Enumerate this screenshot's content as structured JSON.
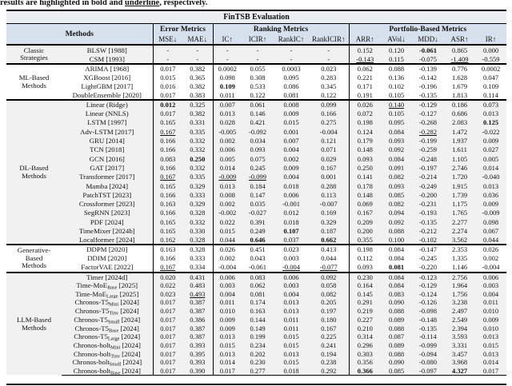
{
  "caption": {
    "prefix": "results are highlighted in ",
    "bold_word": "bold",
    "mid": " and ",
    "underline_word": "underline",
    "suffix": ", respectively."
  },
  "table": {
    "title": "FinTSB Evaluation",
    "header_groups": [
      {
        "label": "Methods",
        "span": 2
      },
      {
        "label": "Error Metrics",
        "span": 2
      },
      {
        "label": "Ranking Metrics",
        "span": 4
      },
      {
        "label": "Portfolio-Based Metrics",
        "span": 5
      }
    ],
    "columns": [
      "MSE↓",
      "MAE↓",
      "IC↑",
      "ICIR↑",
      "RankIC↑",
      "RankICIR↑",
      "ARR↑",
      "AVol↓",
      "MDD↓",
      "ASR↑",
      "IR↑"
    ],
    "colors": {
      "header_bg": "#d7e1ed",
      "title_bg": "#eaedf2",
      "shaded_row_bg": "#f1f1f1",
      "rule": "#000000"
    },
    "groups": [
      {
        "label": [
          "Classic",
          "Strategies"
        ],
        "shaded": true,
        "rows": [
          {
            "m": "BLSW",
            "y": "[1988]",
            "v": [
              "-",
              "-",
              "-",
              "-",
              "-",
              "-",
              "0.152",
              "0.120",
              "-0.061",
              "0.865",
              "0.000"
            ],
            "b": [
              8
            ],
            "u": []
          },
          {
            "m": "CSM",
            "y": "[1993]",
            "v": [
              "-",
              "-",
              "-",
              "-",
              "-",
              "-",
              "-0.143",
              "0.115",
              "-0.075",
              "-1.409",
              "-0.559"
            ],
            "b": [],
            "u": [
              6,
              9
            ]
          }
        ]
      },
      {
        "label": [
          "ML-Based",
          "Methods"
        ],
        "shaded": false,
        "rows": [
          {
            "m": "ARIMA",
            "y": "[1968]",
            "v": [
              "0.017",
              "0.382",
              "0.0002",
              "0.055",
              "0.0003",
              "0.023",
              "0.062",
              "0.088",
              "-0.139",
              "0.776",
              "0.0002"
            ],
            "b": [],
            "u": []
          },
          {
            "m": "XGBoost",
            "y": "[2016]",
            "v": [
              "0.015",
              "0.365",
              "0.098",
              "0.308",
              "0.095",
              "0.283",
              "0.221",
              "0.136",
              "-0.142",
              "1.628",
              "0.047"
            ],
            "b": [],
            "u": []
          },
          {
            "m": "LightGBM",
            "y": "[2017]",
            "v": [
              "0.016",
              "0.382",
              "0.109",
              "0.533",
              "0.086",
              "0.345",
              "0.171",
              "0.102",
              "-0.196",
              "1.679",
              "0.109"
            ],
            "b": [
              2
            ],
            "u": []
          },
          {
            "m": "DoubleEnsemble",
            "y": "[2020]",
            "v": [
              "0.017",
              "0.383",
              "0.011",
              "0.122",
              "0.081",
              "0.122",
              "0.191",
              "0.105",
              "-0.135",
              "1.813",
              "0.114"
            ],
            "b": [],
            "u": []
          }
        ]
      },
      {
        "label": [
          "DL-Based",
          "Methods"
        ],
        "shaded": true,
        "rows": [
          {
            "m": "Linear (Ridge)",
            "y": "",
            "v": [
              "0.012",
              "0.325",
              "0.007",
              "0.061",
              "0.008",
              "0.099",
              "0.026",
              "0.140",
              "-0.129",
              "0.186",
              "0.073"
            ],
            "b": [
              0
            ],
            "u": [
              7
            ]
          },
          {
            "m": "Linear (NNLS)",
            "y": "",
            "v": [
              "0.017",
              "0.382",
              "0.013",
              "0.146",
              "0.009",
              "0.166",
              "0.072",
              "0.105",
              "-0.127",
              "0.686",
              "0.013"
            ],
            "b": [],
            "u": []
          },
          {
            "m": "LSTM",
            "y": "[1997]",
            "v": [
              "0.165",
              "0.331",
              "0.028",
              "0.421",
              "0.015",
              "0.275",
              "0.198",
              "0.095",
              "-0.268",
              "2.083",
              "0.125"
            ],
            "b": [
              10
            ],
            "u": []
          },
          {
            "m": "Adv-LSTM",
            "y": "[2017]",
            "v": [
              "0.167",
              "0.335",
              "-0.005",
              "-0.092",
              "0.001",
              "-0.004",
              "0.124",
              "0.084",
              "-0.282",
              "1.472",
              "-0.022"
            ],
            "b": [],
            "u": [
              0,
              8
            ]
          },
          {
            "m": "GRU",
            "y": "[2014]",
            "v": [
              "0.166",
              "0.332",
              "0.002",
              "0.034",
              "0.007",
              "0.121",
              "0.179",
              "0.093",
              "-0.199",
              "1.937",
              "0.009"
            ],
            "b": [],
            "u": []
          },
          {
            "m": "TCN",
            "y": "[2018]",
            "v": [
              "0.166",
              "0.332",
              "0.006",
              "0.093",
              "0.004",
              "0.071",
              "0.148",
              "0.092",
              "-0.259",
              "1.611",
              "0.027"
            ],
            "b": [],
            "u": []
          },
          {
            "m": "GCN",
            "y": "[2016]",
            "v": [
              "0.083",
              "0.250",
              "0.005",
              "0.075",
              "0.002",
              "0.029",
              "0.093",
              "0.084",
              "-0.248",
              "1.105",
              "0.005"
            ],
            "b": [
              1
            ],
            "u": []
          },
          {
            "m": "GAT",
            "y": "[2017]",
            "v": [
              "0.166",
              "0.332",
              "0.014",
              "0.245",
              "0.009",
              "0.167",
              "0.250",
              "0.091",
              "-0.197",
              "2.746",
              "0.014"
            ],
            "b": [],
            "u": []
          },
          {
            "m": "Transformer",
            "y": "[2017]",
            "v": [
              "0.167",
              "0.335",
              "-0.009",
              "-0.099",
              "0.004",
              "0.001",
              "0.141",
              "0.082",
              "-0.214",
              "1.720",
              "-0.040"
            ],
            "b": [],
            "u": [
              0,
              2,
              3
            ]
          },
          {
            "m": "Mamba",
            "y": "[2024]",
            "v": [
              "0.165",
              "0.329",
              "0.013",
              "0.184",
              "0.018",
              "0.288",
              "0.178",
              "0.093",
              "-0.249",
              "1.915",
              "0.013"
            ],
            "b": [],
            "u": []
          },
          {
            "m": "PatchTST",
            "y": "[2023]",
            "v": [
              "0.166",
              "0.333",
              "0.008",
              "0.147",
              "0.006",
              "0.113",
              "0.148",
              "0.085",
              "-0.200",
              "1.739",
              "0.036"
            ],
            "b": [],
            "u": []
          },
          {
            "m": "Crossformer",
            "y": "[2023]",
            "v": [
              "0.163",
              "0.329",
              "0.002",
              "0.035",
              "-0.001",
              "-0.007",
              "0.069",
              "0.082",
              "-0.231",
              "1.175",
              "0.009"
            ],
            "b": [],
            "u": []
          },
          {
            "m": "SegRNN",
            "y": "[2023]",
            "v": [
              "0.166",
              "0.328",
              "-0.002",
              "-0.027",
              "0.012",
              "0.169",
              "0.167",
              "0.094",
              "-0.193",
              "1.765",
              "-0.009"
            ],
            "b": [],
            "u": []
          },
          {
            "m": "PDF",
            "y": "[2024]",
            "v": [
              "0.165",
              "0.332",
              "0.022",
              "0.391",
              "0.018",
              "0.329",
              "0.209",
              "0.092",
              "-0.135",
              "2.277",
              "0.098"
            ],
            "b": [],
            "u": []
          },
          {
            "m": "TimeMixer",
            "y": "[2024b]",
            "v": [
              "0.165",
              "0.330",
              "0.015",
              "0.249",
              "0.107",
              "0.187",
              "0.200",
              "0.088",
              "-0.212",
              "2.274",
              "0.067"
            ],
            "b": [
              4
            ],
            "u": []
          },
          {
            "m": "Localformer",
            "y": "[2024]",
            "v": [
              "0.162",
              "0.328",
              "0.044",
              "0.646",
              "0.037",
              "0.662",
              "0.355",
              "0.100",
              "-0.102",
              "3.562",
              "0.044"
            ],
            "b": [
              3,
              5
            ],
            "u": []
          }
        ]
      },
      {
        "label": [
          "Generative-",
          "Based",
          "Methods"
        ],
        "shaded": false,
        "rows": [
          {
            "m": "DDPM",
            "y": "[2020]",
            "v": [
              "0.163",
              "0.328",
              "0.026",
              "0.451",
              "0.023",
              "0.413",
              "0.198",
              "0.084",
              "-0.147",
              "2.353",
              "0.026"
            ],
            "b": [],
            "u": []
          },
          {
            "m": "DDIM",
            "y": "[2020]",
            "v": [
              "0.166",
              "0.333",
              "0.002",
              "0.043",
              "0.003",
              "0.044",
              "0.112",
              "0.084",
              "-0.245",
              "1.335",
              "0.002"
            ],
            "b": [],
            "u": []
          },
          {
            "m": "FactorVAE",
            "y": "[2022]",
            "v": [
              "0.167",
              "0.334",
              "-0.004",
              "-0.061",
              "-0.004",
              "-0.077",
              "0.093",
              "0.081",
              "-0.220",
              "1.146",
              "-0.004"
            ],
            "b": [
              7
            ],
            "u": [
              0,
              4,
              5
            ]
          }
        ]
      },
      {
        "label": [
          "LLM-Based",
          "Methods"
        ],
        "shaded": true,
        "rows": [
          {
            "m": "Timer",
            "y": "[2024d]",
            "v": [
              "0.020",
              "0.431",
              "0.006",
              "0.083",
              "0.006",
              "0.092",
              "0.230",
              "0.084",
              "-0.123",
              "2.756",
              "0.006"
            ],
            "b": [],
            "u": []
          },
          {
            "m": "Time-MoE",
            "sub": "Base",
            "y": "[2025]",
            "v": [
              "0.022",
              "0.483",
              "0.003",
              "0.062",
              "0.003",
              "0.058",
              "0.164",
              "0.084",
              "-0.129",
              "1.964",
              "0.003"
            ],
            "b": [],
            "u": []
          },
          {
            "m": "Time-MoE",
            "sub": "Large",
            "y": "[2025]",
            "v": [
              "0.023",
              "0.493",
              "0.004",
              "0.081",
              "0.004",
              "0.082",
              "0.145",
              "0.083",
              "-0.124",
              "1.756",
              "0.004"
            ],
            "b": [],
            "u": [
              1
            ]
          },
          {
            "m": "Chronos-T5",
            "sub": "Mini",
            "y": "[2024]",
            "v": [
              "0.017",
              "0.387",
              "0.011",
              "0.174",
              "0.013",
              "0.205",
              "0.291",
              "0.090",
              "-0.126",
              "3.238",
              "0.011"
            ],
            "b": [],
            "u": []
          },
          {
            "m": "Chronos-T5",
            "sub": "Tiny",
            "y": "[2024]",
            "v": [
              "0.017",
              "0.387",
              "0.010",
              "0.163",
              "0.013",
              "0.197",
              "0.219",
              "0.088",
              "-0.098",
              "2.497",
              "0.010"
            ],
            "b": [],
            "u": []
          },
          {
            "m": "Chronos-T5",
            "sub": "Small",
            "y": "[2024]",
            "v": [
              "0.017",
              "0.386",
              "0.009",
              "0.144",
              "0.011",
              "0.180",
              "0.227",
              "0.089",
              "-0.148",
              "2.549",
              "0.009"
            ],
            "b": [],
            "u": []
          },
          {
            "m": "Chronos-T5",
            "sub": "Base",
            "y": "[2024]",
            "v": [
              "0.017",
              "0.387",
              "0.009",
              "0.149",
              "0.011",
              "0.167",
              "0.210",
              "0.088",
              "-0.135",
              "2.394",
              "0.010"
            ],
            "b": [],
            "u": []
          },
          {
            "m": "Chronos-T5",
            "sub": "Large",
            "y": "[2024]",
            "v": [
              "0.017",
              "0.387",
              "0.013",
              "0.199",
              "0.015",
              "0.225",
              "0.314",
              "0.087",
              "-0.114",
              "3.593",
              "0.013"
            ],
            "b": [],
            "u": []
          },
          {
            "m": "Chronos-bolt",
            "sub": "Mini",
            "y": "[2024]",
            "v": [
              "0.017",
              "0.393",
              "0.015",
              "0.234",
              "0.015",
              "0.241",
              "0.296",
              "0.089",
              "-0.099",
              "3.331",
              "0.015"
            ],
            "b": [],
            "u": []
          },
          {
            "m": "Chronos-bolt",
            "sub": "Tiny",
            "y": "[2024]",
            "v": [
              "0.017",
              "0.395",
              "0.013",
              "0.202",
              "0.013",
              "0.194",
              "0.303",
              "0.088",
              "-0.094",
              "3.457",
              "0.013"
            ],
            "b": [],
            "u": []
          },
          {
            "m": "Chronos-bolt",
            "sub": "Small",
            "y": "[2024]",
            "v": [
              "0.017",
              "0.393",
              "0.014",
              "0.230",
              "0.015",
              "0.238",
              "0.356",
              "0.090",
              "-0.080",
              "3.968",
              "0.014"
            ],
            "b": [],
            "u": []
          },
          {
            "m": "Chronos-bolt",
            "sub": "Base",
            "y": "[2024]",
            "v": [
              "0.017",
              "0.390",
              "0.017",
              "0.277",
              "0.018",
              "0.292",
              "0.366",
              "0.085",
              "-0.097",
              "4.327",
              "0.017"
            ],
            "b": [
              6,
              9
            ],
            "u": []
          }
        ]
      }
    ]
  }
}
